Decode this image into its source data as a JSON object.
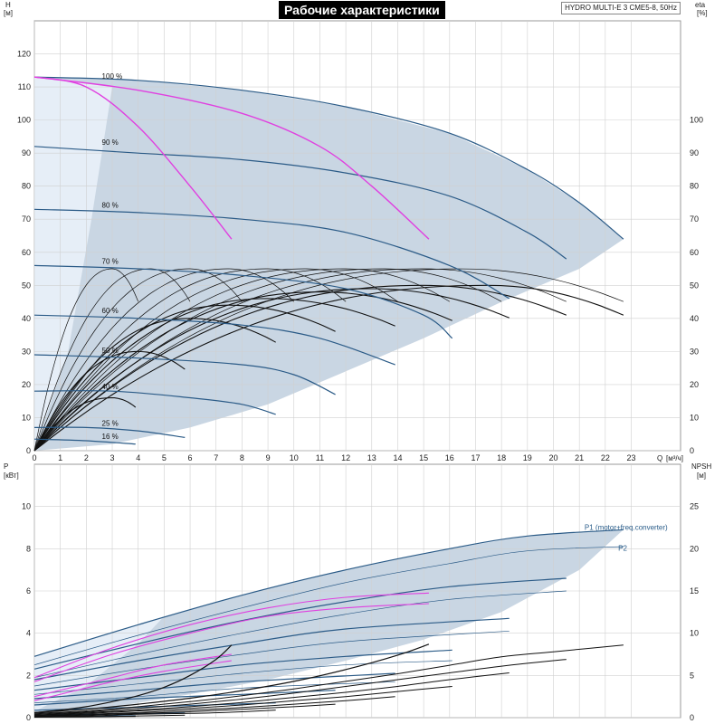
{
  "header": {
    "title": "Рабочие характеристики",
    "model": "HYDRO MULTI-E 3 CME5-8, 50Hz"
  },
  "axes": {
    "h_label": "H",
    "h_unit": "[м]",
    "eta_label": "eta",
    "eta_unit": "[%]",
    "q_label": "Q",
    "q_unit": "[м³/ч]",
    "p_label": "P",
    "p_unit": "[кВт]",
    "npsh_label": "NPSH",
    "npsh_unit": "[м]"
  },
  "colors": {
    "envelope": "#c9d6e3",
    "envelope_light": "#e6eef7",
    "curve_blue": "#2b5b87",
    "magenta": "#e040e0",
    "black": "#111111",
    "grid": "#d0d0d0"
  },
  "chart_data": [
    {
      "type": "line",
      "name": "Q-H",
      "xlim": [
        0,
        24
      ],
      "ylim": [
        0,
        130
      ],
      "x_ticks": [
        0,
        1,
        2,
        3,
        4,
        5,
        6,
        7,
        8,
        9,
        10,
        11,
        12,
        13,
        14,
        15,
        16,
        17,
        18,
        19,
        20,
        21,
        22,
        23
      ],
      "y_ticks": [
        0,
        10,
        20,
        30,
        40,
        50,
        60,
        70,
        80,
        90,
        100,
        110,
        120
      ],
      "eta_ticks": [
        0,
        10,
        20,
        30,
        40,
        50,
        60,
        70,
        80,
        90,
        100
      ],
      "speed_labels": [
        {
          "label": "100 %",
          "q": 2.6,
          "h": 112
        },
        {
          "label": "90 %",
          "q": 2.6,
          "h": 92
        },
        {
          "label": "80 %",
          "q": 2.6,
          "h": 73
        },
        {
          "label": "70 %",
          "q": 2.6,
          "h": 56
        },
        {
          "label": "60 %",
          "q": 2.6,
          "h": 41
        },
        {
          "label": "50 %",
          "q": 2.6,
          "h": 29
        },
        {
          "label": "40 %",
          "q": 2.6,
          "h": 18
        },
        {
          "label": "25 %",
          "q": 2.6,
          "h": 7
        },
        {
          "label": "16 %",
          "q": 2.6,
          "h": 3
        }
      ],
      "envelope": [
        [
          0,
          113
        ],
        [
          4,
          112
        ],
        [
          8,
          109
        ],
        [
          12,
          104
        ],
        [
          16,
          96
        ],
        [
          19,
          85
        ],
        [
          21,
          75
        ],
        [
          22.7,
          64
        ],
        [
          21,
          55
        ],
        [
          18,
          45
        ],
        [
          15,
          34
        ],
        [
          12,
          24
        ],
        [
          9,
          14
        ],
        [
          6,
          7
        ],
        [
          3,
          2
        ],
        [
          0,
          0
        ]
      ],
      "envelope_light": [
        [
          0,
          113
        ],
        [
          1.5,
          112
        ],
        [
          3,
          110
        ],
        [
          2.2,
          70
        ],
        [
          1.3,
          30
        ],
        [
          0,
          0
        ]
      ],
      "speed_curves": [
        {
          "speed": 100,
          "q": [
            0,
            4,
            8,
            12,
            16,
            19,
            21,
            22.7
          ],
          "h": [
            113,
            112,
            109,
            104,
            96,
            85,
            75,
            64
          ]
        },
        {
          "speed": 90,
          "q": [
            0,
            4,
            8,
            12,
            16,
            19,
            20.5
          ],
          "h": [
            92,
            90,
            88,
            84,
            77,
            66,
            58
          ]
        },
        {
          "speed": 80,
          "q": [
            0,
            4,
            8,
            12,
            16,
            18.3
          ],
          "h": [
            73,
            72,
            70,
            66,
            56,
            46
          ]
        },
        {
          "speed": 70,
          "q": [
            0,
            4,
            8,
            12,
            15,
            16.1
          ],
          "h": [
            56,
            55,
            53,
            49,
            41,
            34
          ]
        },
        {
          "speed": 60,
          "q": [
            0,
            4,
            8,
            11,
            13.9
          ],
          "h": [
            41,
            40,
            38,
            34,
            26
          ]
        },
        {
          "speed": 50,
          "q": [
            0,
            4,
            8,
            10,
            11.6
          ],
          "h": [
            29,
            28,
            26,
            23,
            17
          ]
        },
        {
          "speed": 40,
          "q": [
            0,
            3,
            6,
            8,
            9.3
          ],
          "h": [
            18,
            18,
            16,
            14,
            11
          ]
        },
        {
          "speed": 25,
          "q": [
            0,
            2,
            4,
            5.8
          ],
          "h": [
            7,
            7,
            6,
            4
          ]
        },
        {
          "speed": 16,
          "q": [
            0,
            2,
            3.9
          ],
          "h": [
            3.5,
            3,
            2
          ]
        }
      ],
      "magenta_curves": [
        {
          "q": [
            0,
            2,
            4,
            6,
            7.6
          ],
          "h": [
            113,
            110,
            98,
            80,
            64
          ]
        },
        {
          "q": [
            0,
            4,
            8,
            11,
            13,
            15.2
          ],
          "h": [
            113,
            109,
            102,
            92,
            80,
            64
          ]
        }
      ],
      "eta_curves_peak": [
        {
          "qpeak": 3,
          "etapeak": 55,
          "qend": 4
        },
        {
          "qpeak": 4.5,
          "etapeak": 55,
          "qend": 6
        },
        {
          "qpeak": 6,
          "etapeak": 55,
          "qend": 8
        },
        {
          "qpeak": 7.5,
          "etapeak": 55,
          "qend": 10
        },
        {
          "qpeak": 9,
          "etapeak": 55,
          "qend": 12
        },
        {
          "qpeak": 10.5,
          "etapeak": 55,
          "qend": 14
        },
        {
          "qpeak": 12,
          "etapeak": 55,
          "qend": 16
        },
        {
          "qpeak": 13.5,
          "etapeak": 55,
          "qend": 18
        },
        {
          "qpeak": 15,
          "etapeak": 55,
          "qend": 20.5
        },
        {
          "qpeak": 16.5,
          "etapeak": 55,
          "qend": 22.7
        },
        {
          "qpeak": 17.5,
          "etapeak": 50,
          "qend": 22.7
        },
        {
          "qpeak": 15,
          "etapeak": 50,
          "qend": 20.5
        },
        {
          "qpeak": 13,
          "etapeak": 49,
          "qend": 18.3
        },
        {
          "qpeak": 11,
          "etapeak": 48,
          "qend": 16.1
        },
        {
          "qpeak": 9,
          "etapeak": 46,
          "qend": 13.9
        },
        {
          "qpeak": 7.5,
          "etapeak": 44,
          "qend": 11.6
        },
        {
          "qpeak": 6,
          "etapeak": 40,
          "qend": 9.3
        },
        {
          "qpeak": 4,
          "etapeak": 30,
          "qend": 5.8
        },
        {
          "qpeak": 3,
          "etapeak": 16,
          "qend": 3.9
        }
      ]
    },
    {
      "type": "line",
      "name": "Q-P/NPSH",
      "xlim": [
        0,
        24
      ],
      "ylim": [
        0,
        12
      ],
      "y_ticks": [
        0,
        2,
        4,
        6,
        8,
        10
      ],
      "npsh_ticks": [
        0,
        5,
        10,
        15,
        20,
        25
      ],
      "npsh_max": 30,
      "legend": [
        {
          "label": "P1 (motor+freq.converter)",
          "q": 21.2,
          "p": 8.9
        },
        {
          "label": "P2",
          "q": 22.5,
          "p": 7.9
        }
      ],
      "envelope": [
        [
          0,
          2.9
        ],
        [
          4,
          4.4
        ],
        [
          8,
          5.8
        ],
        [
          12,
          7
        ],
        [
          16,
          8
        ],
        [
          19,
          8.6
        ],
        [
          22.7,
          8.9
        ],
        [
          21,
          7
        ],
        [
          18,
          5
        ],
        [
          15,
          3.7
        ],
        [
          12,
          2.7
        ],
        [
          9,
          1.8
        ],
        [
          6,
          1.1
        ],
        [
          3,
          0.5
        ],
        [
          0,
          0.2
        ]
      ],
      "envelope_light": [
        [
          0,
          2.9
        ],
        [
          3,
          4.0
        ],
        [
          5,
          4.8
        ],
        [
          4,
          3.5
        ],
        [
          2,
          1.5
        ],
        [
          0,
          0.3
        ]
      ],
      "p1_curves": [
        {
          "q": [
            0,
            4,
            8,
            12,
            16,
            19,
            22.7
          ],
          "p": [
            2.9,
            4.4,
            5.8,
            7.0,
            8.0,
            8.6,
            8.9
          ]
        },
        {
          "q": [
            0,
            4,
            8,
            12,
            16,
            20.5
          ],
          "p": [
            2.3,
            3.5,
            4.6,
            5.5,
            6.2,
            6.6
          ]
        },
        {
          "q": [
            0,
            4,
            8,
            12,
            18.3
          ],
          "p": [
            1.8,
            2.7,
            3.5,
            4.2,
            4.7
          ]
        },
        {
          "q": [
            0,
            4,
            8,
            12,
            16.1
          ],
          "p": [
            1.3,
            1.9,
            2.5,
            2.9,
            3.2
          ]
        },
        {
          "q": [
            0,
            4,
            8,
            13.9
          ],
          "p": [
            0.9,
            1.3,
            1.7,
            2.1
          ]
        },
        {
          "q": [
            0,
            4,
            8,
            11.6
          ],
          "p": [
            0.6,
            0.9,
            1.1,
            1.3
          ]
        },
        {
          "q": [
            0,
            4,
            9.3
          ],
          "p": [
            0.35,
            0.5,
            0.7
          ]
        },
        {
          "q": [
            0,
            3,
            5.8
          ],
          "p": [
            0.12,
            0.17,
            0.22
          ]
        },
        {
          "q": [
            0,
            2,
            3.9
          ],
          "p": [
            0.05,
            0.07,
            0.09
          ]
        }
      ],
      "p2_curves": [
        {
          "q": [
            0,
            4,
            8,
            12,
            16,
            19,
            22.7
          ],
          "p": [
            2.5,
            3.9,
            5.2,
            6.4,
            7.3,
            7.9,
            8.1
          ]
        },
        {
          "q": [
            0,
            4,
            8,
            12,
            16,
            20.5
          ],
          "p": [
            1.9,
            3.0,
            4.0,
            4.9,
            5.6,
            6.0
          ]
        },
        {
          "q": [
            0,
            4,
            8,
            12,
            18.3
          ],
          "p": [
            1.5,
            2.3,
            3.0,
            3.6,
            4.1
          ]
        },
        {
          "q": [
            0,
            4,
            8,
            12,
            16.1
          ],
          "p": [
            1.1,
            1.6,
            2.1,
            2.5,
            2.7
          ]
        },
        {
          "q": [
            0,
            4,
            8,
            13.9
          ],
          "p": [
            0.7,
            1.0,
            1.4,
            1.7
          ]
        }
      ],
      "magenta_curves": [
        {
          "q": [
            0,
            3,
            6,
            9,
            12,
            15.2
          ],
          "p": [
            1.9,
            3.3,
            4.4,
            5.2,
            5.7,
            5.9
          ]
        },
        {
          "q": [
            0,
            3,
            6,
            9,
            12,
            15.2
          ],
          "p": [
            1.7,
            3.0,
            4.0,
            4.8,
            5.2,
            5.4
          ]
        },
        {
          "q": [
            0,
            3,
            5,
            7.6
          ],
          "p": [
            1.0,
            1.9,
            2.5,
            3.0
          ]
        },
        {
          "q": [
            0,
            3,
            5,
            7.6
          ],
          "p": [
            0.8,
            1.7,
            2.2,
            2.7
          ]
        }
      ],
      "npsh_curves": [
        {
          "q": [
            0,
            2,
            4,
            6,
            8,
            10,
            12,
            14,
            16,
            18,
            20,
            22.7
          ],
          "npsh": [
            0.5,
            0.8,
            1.3,
            1.9,
            2.6,
            3.4,
            4.3,
            5.2,
            6.2,
            7.2,
            7.8,
            8.6
          ]
        },
        {
          "q": [
            0,
            2,
            4,
            6,
            8,
            10,
            12,
            14,
            16,
            18,
            20.5
          ],
          "npsh": [
            0.4,
            0.7,
            1.1,
            1.6,
            2.2,
            2.9,
            3.7,
            4.5,
            5.3,
            6.1,
            6.9
          ]
        },
        {
          "q": [
            0,
            2,
            4,
            6,
            8,
            10,
            12,
            14,
            16,
            18.3
          ],
          "npsh": [
            0.3,
            0.6,
            0.9,
            1.3,
            1.8,
            2.4,
            3.0,
            3.7,
            4.5,
            5.3
          ]
        },
        {
          "q": [
            0,
            2,
            4,
            6,
            8,
            10,
            12,
            14,
            16.1
          ],
          "npsh": [
            0.3,
            0.5,
            0.8,
            1.1,
            1.5,
            2.0,
            2.5,
            3.1,
            3.7
          ]
        },
        {
          "q": [
            0,
            2,
            4,
            6,
            8,
            10,
            12,
            13.9
          ],
          "npsh": [
            0.2,
            0.4,
            0.6,
            0.9,
            1.2,
            1.6,
            2.0,
            2.5
          ]
        },
        {
          "q": [
            0,
            2,
            4,
            6,
            8,
            10,
            11.6
          ],
          "npsh": [
            0.2,
            0.3,
            0.5,
            0.7,
            1.0,
            1.3,
            1.6
          ]
        },
        {
          "q": [
            0,
            2,
            4,
            6,
            8,
            9.3
          ],
          "npsh": [
            0.1,
            0.2,
            0.4,
            0.5,
            0.7,
            0.9
          ]
        },
        {
          "q": [
            0,
            2,
            4,
            5.8
          ],
          "npsh": [
            0.1,
            0.1,
            0.2,
            0.3
          ]
        },
        {
          "q": [
            0,
            2,
            3.9
          ],
          "npsh": [
            0.05,
            0.1,
            0.15
          ]
        }
      ],
      "npsh_steep": [
        {
          "q": [
            0,
            1,
            2,
            3,
            4,
            5,
            6,
            7,
            7.6
          ],
          "npsh": [
            0.6,
            0.9,
            1.3,
            1.9,
            2.6,
            3.6,
            5.0,
            6.9,
            8.6
          ]
        },
        {
          "q": [
            0,
            2,
            4,
            6,
            8,
            10,
            12,
            14,
            15.2
          ],
          "npsh": [
            0.6,
            1.0,
            1.6,
            2.3,
            3.2,
            4.3,
            5.7,
            7.4,
            8.7
          ]
        }
      ]
    }
  ]
}
